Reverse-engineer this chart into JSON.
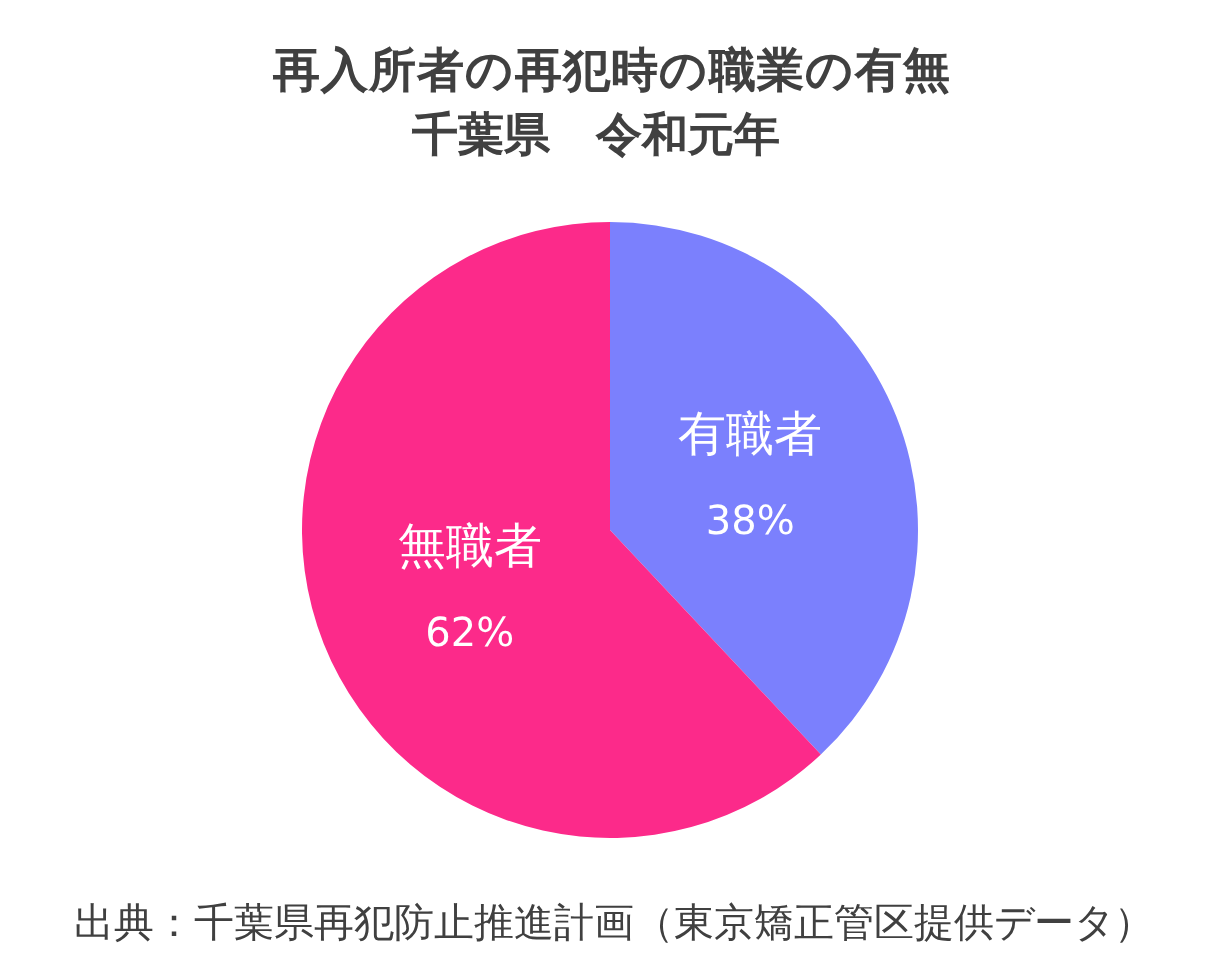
{
  "chart_data": {
    "type": "pie",
    "title": "再入所者の再犯時の職業の有無",
    "subtitle": "千葉県　令和元年",
    "categories": [
      "有職者",
      "無職者"
    ],
    "values": [
      38,
      62
    ],
    "colors": [
      "#7b80fd",
      "#fc2a8a"
    ],
    "value_labels": [
      "38%",
      "62%"
    ],
    "annotations": [
      "出典：千葉県再犯防止推進計画（東京矯正管区提供データ）"
    ]
  }
}
